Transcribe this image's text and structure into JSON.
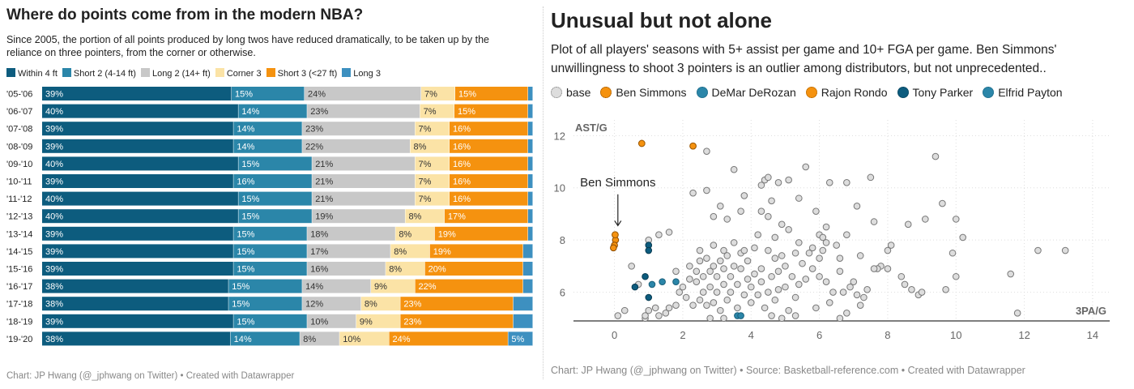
{
  "left": {
    "title": "Where do points come from in the modern NBA?",
    "subtitle": "Since 2005, the portion of all points produced by long twos have reduced dramatically, to be taken up by the reliance on three pointers, from the corner or otherwise.",
    "footer": "Chart: JP Hwang (@_jphwang on Twitter) • Created with Datawrapper"
  },
  "right": {
    "title": "Unusual but not alone",
    "subtitle": "Plot of all players' seasons with 5+ assist per game and 10+ FGA per game. Ben Simmons' unwillingness to shoot 3 pointers is an outlier among distributors, but not unprecedented..",
    "footer": "Chart: JP Hwang (@_jphwang on Twitter) • Source: Basketball-reference.com • Created with Datawrapper",
    "annotation": "Ben Simmons"
  },
  "chart_data": [
    {
      "type": "bar",
      "stacked": true,
      "orientation": "horizontal",
      "categories": [
        "'05-'06",
        "'06-'07",
        "'07-'08",
        "'08-'09",
        "'09-'10",
        "'10-'11",
        "'11-'12",
        "'12-'13",
        "'13-'14",
        "'14-'15",
        "'15-'16",
        "'16-'17",
        "'17-'18",
        "'18-'19",
        "'19-'20"
      ],
      "series": [
        {
          "name": "Within 4 ft",
          "color": "#0d5c7e",
          "values": [
            39,
            40,
            39,
            39,
            40,
            39,
            40,
            40,
            39,
            39,
            39,
            38,
            38,
            39,
            38
          ]
        },
        {
          "name": "Short 2 (4-14 ft)",
          "color": "#2b86a9",
          "values": [
            15,
            14,
            14,
            14,
            15,
            16,
            15,
            15,
            15,
            15,
            15,
            15,
            15,
            15,
            14
          ]
        },
        {
          "name": "Long 2 (14+ ft)",
          "color": "#c8c8c8",
          "values": [
            24,
            23,
            23,
            22,
            21,
            21,
            21,
            19,
            18,
            17,
            16,
            14,
            12,
            10,
            8
          ]
        },
        {
          "name": "Corner 3",
          "color": "#fbe3a6",
          "values": [
            7,
            7,
            7,
            8,
            7,
            7,
            7,
            8,
            8,
            8,
            8,
            9,
            8,
            9,
            10
          ]
        },
        {
          "name": "Short 3 (<27 ft)",
          "color": "#f5920f",
          "values": [
            15,
            15,
            16,
            16,
            16,
            16,
            16,
            17,
            19,
            19,
            20,
            22,
            23,
            23,
            24
          ]
        },
        {
          "name": "Long 3",
          "color": "#3d90c0",
          "values": [
            1,
            1,
            1,
            1,
            1,
            1,
            1,
            1,
            1,
            2,
            2,
            2,
            4,
            4,
            5
          ]
        }
      ],
      "labels_shown": [
        [
          "39%",
          "15%",
          "24%",
          "7%",
          "15%",
          ""
        ],
        [
          "40%",
          "14%",
          "23%",
          "7%",
          "15%",
          ""
        ],
        [
          "39%",
          "14%",
          "23%",
          "7%",
          "16%",
          ""
        ],
        [
          "39%",
          "14%",
          "22%",
          "8%",
          "16%",
          ""
        ],
        [
          "40%",
          "15%",
          "21%",
          "7%",
          "16%",
          ""
        ],
        [
          "39%",
          "16%",
          "21%",
          "7%",
          "16%",
          ""
        ],
        [
          "40%",
          "15%",
          "21%",
          "7%",
          "16%",
          ""
        ],
        [
          "40%",
          "15%",
          "19%",
          "8%",
          "17%",
          ""
        ],
        [
          "39%",
          "15%",
          "18%",
          "8%",
          "19%",
          ""
        ],
        [
          "39%",
          "15%",
          "17%",
          "8%",
          "19%",
          ""
        ],
        [
          "39%",
          "15%",
          "16%",
          "8%",
          "20%",
          ""
        ],
        [
          "38%",
          "15%",
          "14%",
          "9%",
          "22%",
          ""
        ],
        [
          "38%",
          "15%",
          "12%",
          "8%",
          "23%",
          ""
        ],
        [
          "39%",
          "15%",
          "10%",
          "9%",
          "23%",
          ""
        ],
        [
          "38%",
          "14%",
          "8%",
          "10%",
          "24%",
          "5%"
        ]
      ],
      "title": "Where do points come from in the modern NBA?"
    },
    {
      "type": "scatter",
      "title": "Unusual but not alone",
      "xlabel": "3PA/G",
      "ylabel": "AST/G",
      "xlim": [
        -1.2,
        14.5
      ],
      "ylim": [
        4.9,
        12.6
      ],
      "xticks": [
        0,
        2,
        4,
        6,
        8,
        10,
        12,
        14
      ],
      "yticks": [
        6,
        8,
        10,
        12
      ],
      "series": [
        {
          "name": "base",
          "color": "#dddddd",
          "stroke": "#777777",
          "points": [
            [
              2.3,
              9.8
            ],
            [
              2.7,
              11.4
            ],
            [
              2.7,
              9.9
            ],
            [
              2.9,
              8.9
            ],
            [
              3.1,
              9.3
            ],
            [
              3.3,
              8.8
            ],
            [
              3.5,
              10.7
            ],
            [
              3.7,
              9.1
            ],
            [
              3.8,
              9.7
            ],
            [
              4.3,
              10.1
            ],
            [
              4.4,
              10.3
            ],
            [
              4.5,
              10.4
            ],
            [
              4.8,
              10.2
            ],
            [
              4.6,
              9.5
            ],
            [
              4.3,
              9.1
            ],
            [
              4.5,
              8.9
            ],
            [
              4.9,
              8.6
            ],
            [
              5.1,
              10.3
            ],
            [
              5.6,
              10.8
            ],
            [
              5.4,
              9.6
            ],
            [
              5.9,
              9.1
            ],
            [
              5.1,
              8.4
            ],
            [
              6.0,
              8.2
            ],
            [
              6.1,
              8.1
            ],
            [
              6.3,
              10.2
            ],
            [
              6.8,
              10.2
            ],
            [
              7.5,
              10.4
            ],
            [
              7.1,
              9.3
            ],
            [
              7.6,
              8.7
            ],
            [
              8.6,
              8.6
            ],
            [
              9.1,
              8.8
            ],
            [
              9.4,
              11.2
            ],
            [
              9.6,
              9.4
            ],
            [
              10.0,
              8.8
            ],
            [
              10.2,
              8.1
            ],
            [
              12.4,
              7.6
            ],
            [
              13.2,
              7.6
            ],
            [
              11.6,
              6.7
            ],
            [
              11.8,
              5.2
            ],
            [
              10.0,
              6.6
            ],
            [
              9.9,
              7.5
            ],
            [
              9.7,
              6.1
            ],
            [
              8.4,
              6.6
            ],
            [
              8.9,
              5.9
            ],
            [
              8.7,
              6.1
            ],
            [
              8.0,
              6.9
            ],
            [
              8.1,
              7.8
            ],
            [
              8.0,
              7.6
            ],
            [
              7.8,
              7.0
            ],
            [
              7.7,
              6.9
            ],
            [
              7.6,
              6.9
            ],
            [
              7.4,
              6.1
            ],
            [
              7.3,
              5.8
            ],
            [
              7.0,
              6.4
            ],
            [
              7.1,
              5.9
            ],
            [
              7.2,
              5.5
            ],
            [
              6.9,
              6.2
            ],
            [
              6.8,
              5.2
            ],
            [
              6.7,
              6.0
            ],
            [
              6.6,
              5.0
            ],
            [
              6.6,
              6.8
            ],
            [
              6.4,
              6.0
            ],
            [
              6.3,
              5.6
            ],
            [
              6.2,
              6.4
            ],
            [
              6.1,
              7.6
            ],
            [
              6.2,
              7.9
            ],
            [
              6.0,
              7.3
            ],
            [
              6.0,
              6.6
            ],
            [
              5.9,
              5.4
            ],
            [
              5.8,
              7.7
            ],
            [
              5.8,
              6.9
            ],
            [
              5.6,
              6.5
            ],
            [
              5.5,
              7.1
            ],
            [
              5.4,
              6.3
            ],
            [
              5.3,
              7.5
            ],
            [
              5.3,
              5.8
            ],
            [
              5.2,
              6.6
            ],
            [
              5.1,
              5.3
            ],
            [
              5.0,
              7.0
            ],
            [
              5.0,
              6.2
            ],
            [
              4.9,
              5.0
            ],
            [
              4.8,
              6.8
            ],
            [
              4.8,
              6.1
            ],
            [
              4.7,
              7.3
            ],
            [
              4.7,
              5.7
            ],
            [
              4.6,
              6.6
            ],
            [
              4.5,
              7.6
            ],
            [
              4.5,
              6.0
            ],
            [
              4.4,
              5.4
            ],
            [
              4.3,
              6.9
            ],
            [
              4.3,
              6.4
            ],
            [
              4.2,
              5.9
            ],
            [
              4.1,
              7.7
            ],
            [
              4.1,
              6.7
            ],
            [
              4.0,
              6.2
            ],
            [
              4.0,
              5.6
            ],
            [
              3.9,
              7.2
            ],
            [
              3.9,
              6.5
            ],
            [
              3.8,
              5.9
            ],
            [
              3.7,
              7.5
            ],
            [
              3.7,
              6.9
            ],
            [
              3.6,
              6.3
            ],
            [
              3.6,
              5.4
            ],
            [
              3.5,
              7.9
            ],
            [
              3.5,
              7.0
            ],
            [
              3.4,
              6.6
            ],
            [
              3.4,
              6.0
            ],
            [
              3.3,
              7.4
            ],
            [
              3.3,
              5.7
            ],
            [
              3.2,
              6.9
            ],
            [
              3.2,
              6.3
            ],
            [
              3.1,
              7.2
            ],
            [
              3.1,
              5.3
            ],
            [
              3.0,
              6.6
            ],
            [
              3.0,
              6.0
            ],
            [
              2.9,
              7.0
            ],
            [
              2.9,
              5.6
            ],
            [
              2.8,
              6.8
            ],
            [
              2.8,
              6.2
            ],
            [
              2.7,
              7.3
            ],
            [
              2.7,
              5.5
            ],
            [
              2.6,
              6.6
            ],
            [
              2.6,
              6.0
            ],
            [
              2.5,
              7.2
            ],
            [
              2.5,
              5.7
            ],
            [
              2.4,
              6.4
            ],
            [
              2.4,
              6.8
            ],
            [
              2.3,
              5.5
            ],
            [
              2.2,
              6.5
            ],
            [
              2.1,
              5.8
            ],
            [
              2.0,
              6.2
            ],
            [
              1.8,
              5.5
            ],
            [
              1.9,
              6.0
            ],
            [
              1.5,
              5.2
            ],
            [
              1.2,
              5.4
            ],
            [
              1.0,
              5.3
            ],
            [
              0.9,
              5.0
            ],
            [
              0.9,
              5.1
            ],
            [
              1.6,
              5.4
            ],
            [
              1.3,
              5.1
            ],
            [
              1.0,
              8.0
            ],
            [
              1.3,
              8.2
            ],
            [
              1.6,
              8.3
            ],
            [
              0.5,
              7.0
            ],
            [
              0.7,
              6.3
            ],
            [
              0.3,
              5.3
            ],
            [
              0.1,
              5.1
            ],
            [
              2.2,
              7.0
            ],
            [
              2.5,
              7.6
            ],
            [
              1.8,
              6.8
            ],
            [
              2.9,
              7.8
            ],
            [
              3.2,
              7.6
            ],
            [
              3.8,
              7.6
            ],
            [
              4.2,
              8.2
            ],
            [
              4.7,
              8.1
            ],
            [
              5.4,
              7.9
            ],
            [
              5.7,
              7.5
            ],
            [
              6.5,
              7.8
            ],
            [
              6.6,
              7.3
            ],
            [
              6.8,
              8.2
            ],
            [
              7.2,
              7.4
            ],
            [
              6.2,
              8.5
            ],
            [
              4.9,
              7.4
            ],
            [
              8.5,
              6.3
            ],
            [
              9.0,
              6.0
            ],
            [
              5.3,
              5.1
            ],
            [
              4.6,
              5.1
            ],
            [
              3.2,
              5.0
            ],
            [
              2.8,
              5.0
            ]
          ]
        },
        {
          "name": "Ben Simmons",
          "color": "#f5920f",
          "stroke": "#8a4a00",
          "points": [
            [
              0.02,
              8.2
            ],
            [
              0.03,
              8.0
            ],
            [
              0.0,
              7.8
            ],
            [
              -0.03,
              7.7
            ],
            [
              0.8,
              11.7
            ],
            [
              2.3,
              11.6
            ]
          ]
        },
        {
          "name": "DeMar DeRozan",
          "color": "#2b86a9",
          "stroke": "#1a5f7a",
          "points": [
            [
              1.8,
              6.4
            ],
            [
              1.4,
              6.4
            ],
            [
              1.1,
              6.3
            ]
          ]
        },
        {
          "name": "Rajon Rondo",
          "color": "#f5920f",
          "stroke": "#a05a00",
          "points": [
            [
              0.02,
              8.2
            ],
            [
              0.8,
              11.7
            ],
            [
              2.3,
              11.6
            ]
          ]
        },
        {
          "name": "Tony Parker",
          "color": "#0d5c7e",
          "stroke": "#083a50",
          "points": [
            [
              1.0,
              7.8
            ],
            [
              1.0,
              7.6
            ],
            [
              0.9,
              6.6
            ],
            [
              0.6,
              6.2
            ],
            [
              1.0,
              5.8
            ]
          ]
        },
        {
          "name": "Elfrid Payton",
          "color": "#2b86a9",
          "stroke": "#1a5f7a",
          "points": [
            [
              3.6,
              5.1
            ],
            [
              3.7,
              5.1
            ]
          ]
        }
      ],
      "legend": [
        "base",
        "Ben Simmons",
        "DeMar DeRozan",
        "Rajon Rondo",
        "Tony Parker",
        "Elfrid Payton"
      ]
    }
  ]
}
